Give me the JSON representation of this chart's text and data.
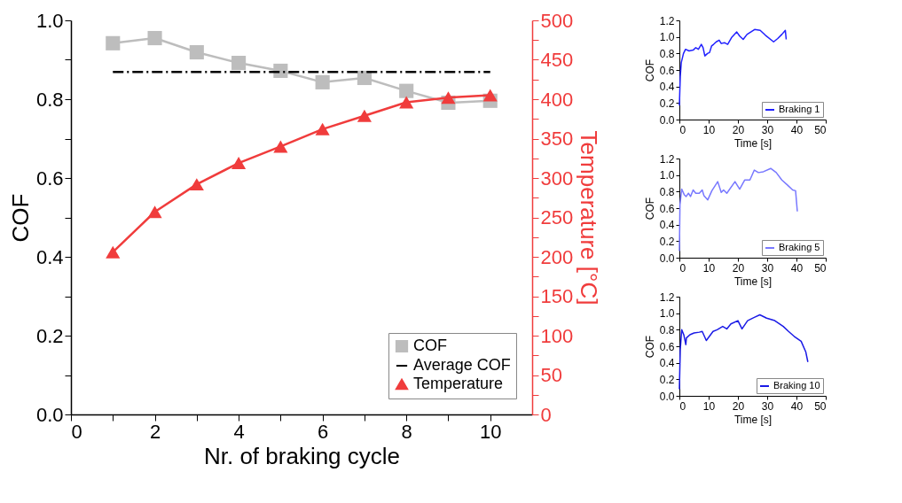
{
  "chart_data": [
    {
      "type": "line",
      "xlabel": "Nr. of braking cycle",
      "ylabel": "COF",
      "y2label": "Temperature [°C]",
      "xlim": [
        0,
        11
      ],
      "xticks": [
        0,
        {
          "value": 1,
          "label": null
        },
        2,
        {
          "value": 3,
          "label": null
        },
        4,
        {
          "value": 5,
          "label": null
        },
        6,
        {
          "value": 7,
          "label": null
        },
        8,
        {
          "value": 9,
          "label": null
        },
        10
      ],
      "ylim": [
        0,
        1.0
      ],
      "yticks": [
        {
          "value": 0,
          "label": "0.0"
        },
        {
          "value": 0.1,
          "label": null
        },
        {
          "value": 0.2,
          "label": "0.2"
        },
        {
          "value": 0.3,
          "label": null
        },
        {
          "value": 0.4,
          "label": "0.4"
        },
        {
          "value": 0.5,
          "label": null
        },
        {
          "value": 0.6,
          "label": "0.6"
        },
        {
          "value": 0.7,
          "label": null
        },
        {
          "value": 0.8,
          "label": "0.8"
        },
        {
          "value": 0.9,
          "label": null
        },
        {
          "value": 1.0,
          "label": "1.0"
        }
      ],
      "y2lim": [
        0,
        500
      ],
      "y2ticks": [
        0,
        {
          "value": 25,
          "label": null
        },
        50,
        {
          "value": 75,
          "label": null
        },
        100,
        {
          "value": 125,
          "label": null
        },
        150,
        {
          "value": 175,
          "label": null
        },
        200,
        {
          "value": 225,
          "label": null
        },
        250,
        {
          "value": 275,
          "label": null
        },
        300,
        {
          "value": 325,
          "label": null
        },
        350,
        {
          "value": 375,
          "label": null
        },
        400,
        {
          "value": 425,
          "label": null
        },
        450,
        {
          "value": 475,
          "label": null
        },
        500
      ],
      "legend": "bottom right",
      "grid": false,
      "series": [
        {
          "name": "COF",
          "type": "line",
          "color": "#bdbdbd",
          "marker": "square",
          "x": [
            1,
            2,
            3,
            4,
            5,
            6,
            7,
            8,
            9,
            10
          ],
          "values": [
            0.942,
            0.955,
            0.919,
            0.892,
            0.872,
            0.843,
            0.854,
            0.821,
            0.791,
            0.796
          ]
        },
        {
          "name": "Average COF",
          "type": "line",
          "color": "#000000",
          "marker": "none",
          "line_style": "dashdot",
          "x": [
            1,
            10
          ],
          "values": [
            0.869,
            0.869
          ]
        },
        {
          "name": "Temperature",
          "type": "line",
          "color": "#f03c3c",
          "marker": "triangle",
          "axis": "y2",
          "x": [
            1,
            2,
            3,
            4,
            5,
            6,
            7,
            8,
            9,
            10
          ],
          "values": [
            206,
            257,
            292,
            319,
            340,
            362,
            379,
            396,
            402,
            405
          ]
        }
      ]
    },
    {
      "type": "line",
      "xlabel": "Time [s]",
      "ylabel": "COF",
      "xlim": [
        0,
        50
      ],
      "xticks": [
        0,
        10,
        20,
        30,
        40,
        50
      ],
      "ylim": [
        0,
        1.2
      ],
      "yticks": [
        {
          "value": 0,
          "label": "0.0"
        },
        {
          "value": 0.2,
          "label": "0.2"
        },
        {
          "value": 0.4,
          "label": "0.4"
        },
        {
          "value": 0.6,
          "label": "0.6"
        },
        {
          "value": 0.8,
          "label": "0.8"
        },
        {
          "value": 1.0,
          "label": "1.0"
        },
        {
          "value": 1.2,
          "label": "1.2"
        }
      ],
      "legend": "bottom right",
      "grid": false,
      "marker": "none",
      "series": [
        {
          "name": "Braking 1",
          "type": "line",
          "color": "#2020ff",
          "x": [
            0,
            0.3,
            0.65,
            1.4,
            2.1,
            3.3,
            4.7,
            5.6,
            6.5,
            7.5,
            8.1,
            8.7,
            9.6,
            10.3,
            11,
            11.7,
            12.6,
            13.6,
            14.3,
            15.4,
            16.5,
            17.8,
            19.6,
            20.6,
            21.8,
            23.1,
            25.7,
            27.6,
            29.4,
            32.2,
            33.6,
            35,
            36.2,
            36.5
          ],
          "values": [
            0.17,
            0.52,
            0.69,
            0.8,
            0.85,
            0.83,
            0.84,
            0.87,
            0.85,
            0.91,
            0.87,
            0.77,
            0.8,
            0.81,
            0.89,
            0.91,
            0.94,
            0.96,
            0.92,
            0.93,
            0.91,
            0.99,
            1.06,
            1.01,
            0.97,
            1.03,
            1.09,
            1.08,
            1.02,
            0.94,
            0.98,
            1.03,
            1.08,
            0.97
          ]
        }
      ]
    },
    {
      "type": "line",
      "xlabel": "Time [s]",
      "ylabel": "COF",
      "xlim": [
        0,
        50
      ],
      "xticks": [
        0,
        10,
        20,
        30,
        40,
        50
      ],
      "ylim": [
        0,
        1.2
      ],
      "yticks": [
        {
          "value": 0,
          "label": "0.0"
        },
        {
          "value": 0.2,
          "label": "0.2"
        },
        {
          "value": 0.4,
          "label": "0.4"
        },
        {
          "value": 0.6,
          "label": "0.6"
        },
        {
          "value": 0.8,
          "label": "0.8"
        },
        {
          "value": 1.0,
          "label": "1.0"
        },
        {
          "value": 1.2,
          "label": "1.2"
        }
      ],
      "legend": "bottom right",
      "grid": false,
      "marker": "none",
      "series": [
        {
          "name": "Braking 5",
          "type": "line",
          "color": "#7878ff",
          "x": [
            0,
            0.2,
            0.8,
            1.7,
            2.3,
            3.1,
            3.8,
            4.7,
            5.6,
            6.8,
            7.8,
            8.4,
            9.7,
            11.1,
            13.1,
            14.3,
            15.1,
            16.2,
            19,
            20.6,
            22.3,
            24.1,
            25.6,
            27,
            28.7,
            31.2,
            33.1,
            35,
            36.9,
            38.7,
            39.7,
            40.3
          ],
          "values": [
            0.08,
            0.64,
            0.83,
            0.76,
            0.74,
            0.78,
            0.74,
            0.82,
            0.78,
            0.78,
            0.82,
            0.75,
            0.7,
            0.81,
            0.92,
            0.79,
            0.82,
            0.78,
            0.92,
            0.83,
            0.94,
            0.94,
            1.06,
            1.03,
            1.04,
            1.08,
            1.03,
            0.94,
            0.88,
            0.82,
            0.81,
            0.56
          ]
        }
      ]
    },
    {
      "type": "line",
      "xlabel": "Time [s]",
      "ylabel": "COF",
      "xlim": [
        0,
        50
      ],
      "xticks": [
        0,
        10,
        20,
        30,
        40,
        50
      ],
      "ylim": [
        0,
        1.2
      ],
      "yticks": [
        {
          "value": 0,
          "label": "0.0"
        },
        {
          "value": 0.2,
          "label": "0.2"
        },
        {
          "value": 0.4,
          "label": "0.4"
        },
        {
          "value": 0.6,
          "label": "0.6"
        },
        {
          "value": 0.8,
          "label": "0.8"
        },
        {
          "value": 1.0,
          "label": "1.0"
        },
        {
          "value": 1.2,
          "label": "1.2"
        }
      ],
      "legend": "bottom right",
      "grid": false,
      "marker": "none",
      "series": [
        {
          "name": "Braking 10",
          "type": "line",
          "color": "#1a1ae6",
          "x": [
            0,
            0.3,
            0.8,
            1.5,
            2.2,
            2.4,
            3.6,
            5,
            6.8,
            7.8,
            9.2,
            11.5,
            12.9,
            14.8,
            16.2,
            17.6,
            20,
            21.4,
            23.3,
            25.6,
            27.5,
            29.8,
            32.6,
            35.5,
            37.3,
            39.2,
            41.6,
            43.2,
            43.9
          ],
          "values": [
            0.08,
            0.56,
            0.8,
            0.74,
            0.62,
            0.7,
            0.74,
            0.76,
            0.77,
            0.78,
            0.67,
            0.78,
            0.8,
            0.84,
            0.81,
            0.87,
            0.91,
            0.81,
            0.91,
            0.95,
            0.98,
            0.94,
            0.91,
            0.84,
            0.78,
            0.72,
            0.66,
            0.53,
            0.41
          ]
        }
      ]
    }
  ]
}
